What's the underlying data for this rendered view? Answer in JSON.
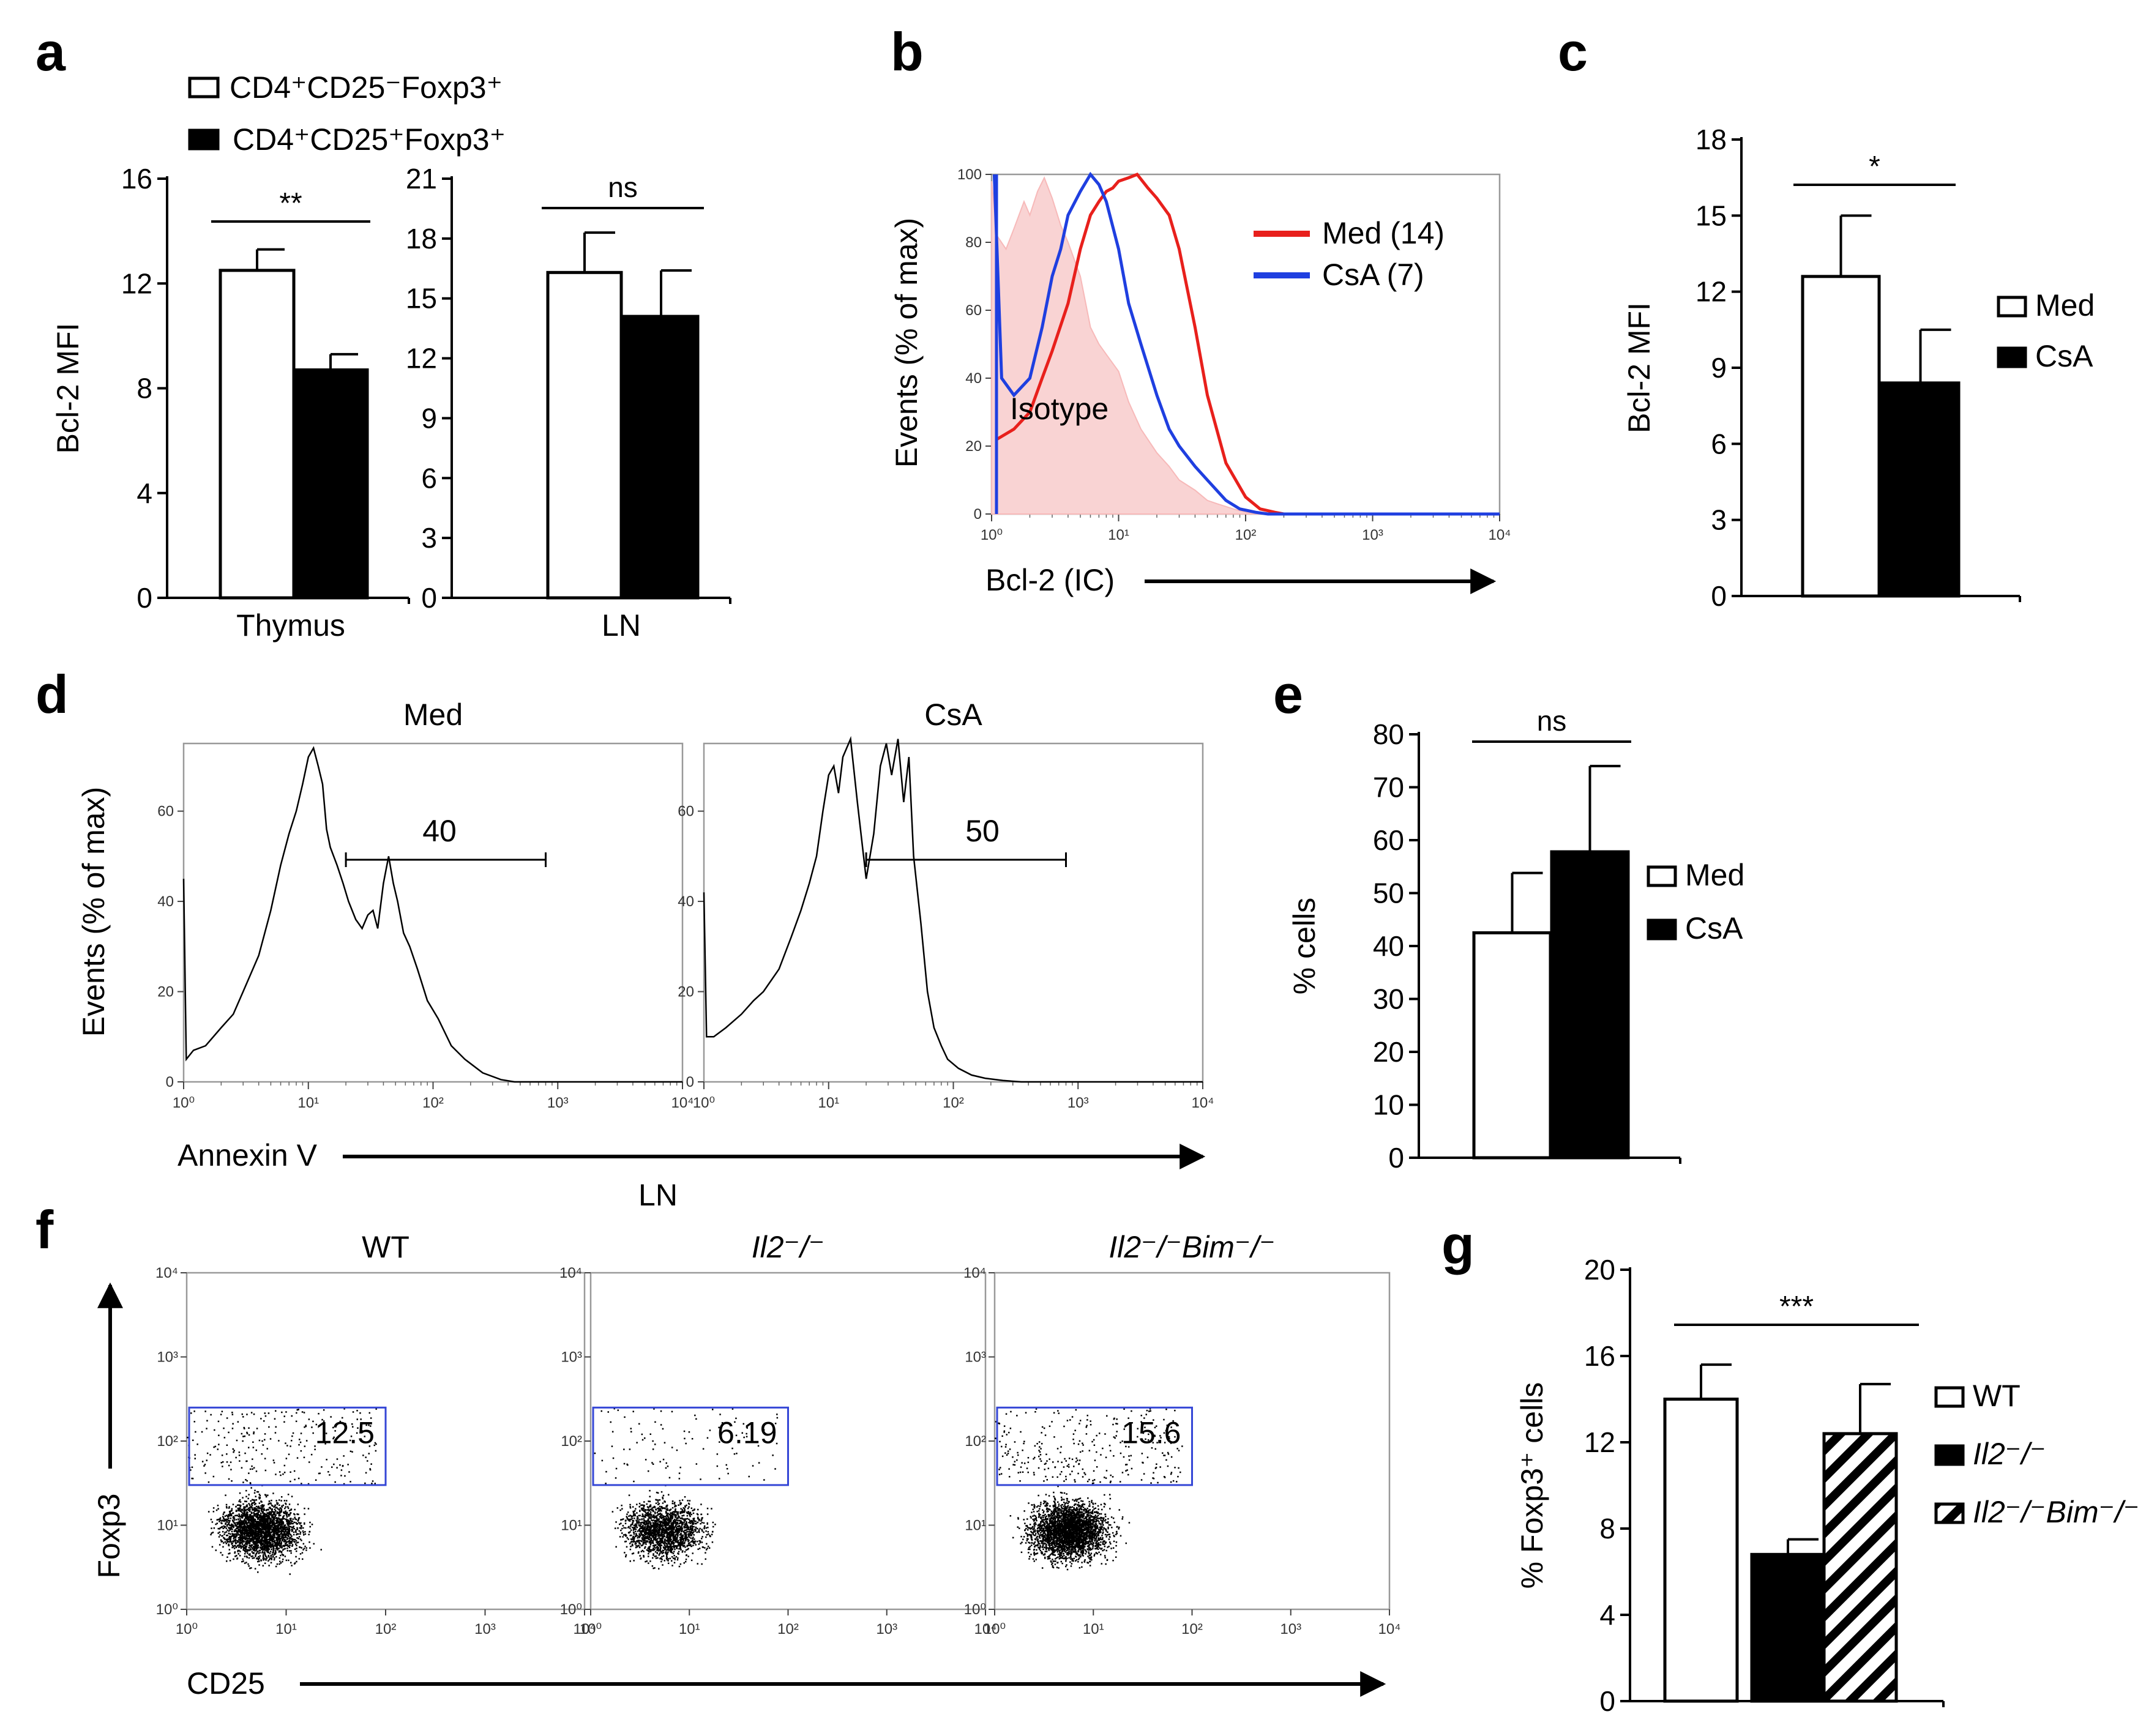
{
  "panels": {
    "a": {
      "label": "a",
      "legend": [
        {
          "text": "CD4⁺CD25⁻Foxp3⁺",
          "fill": "#ffffff"
        },
        {
          "text": "CD4⁺CD25⁺Foxp3⁺",
          "fill": "#000000"
        }
      ]
    },
    "b": {
      "label": "b"
    },
    "c": {
      "label": "c"
    },
    "d": {
      "label": "d"
    },
    "e": {
      "label": "e"
    },
    "f": {
      "label": "f"
    },
    "g": {
      "label": "g"
    }
  },
  "colors": {
    "med_line": "#e8201c",
    "csa_line": "#1f3fe0",
    "isotype_fill": "#f9d3d3",
    "gate": "#3446d6"
  },
  "chart_data": [
    {
      "id": "a-thymus",
      "type": "bar",
      "ylabel": "Bcl-2 MFI",
      "xlabel": "Thymus",
      "ylim": [
        0,
        16
      ],
      "yticks": [
        0,
        4,
        8,
        12,
        16
      ],
      "series": [
        {
          "name": "CD4⁺CD25⁻Foxp3⁺",
          "fill": "#ffffff",
          "value": 12.5,
          "err": 0.8
        },
        {
          "name": "CD4⁺CD25⁺Foxp3⁺",
          "fill": "#000000",
          "value": 8.7,
          "err": 0.6
        }
      ],
      "significance": "**"
    },
    {
      "id": "a-ln",
      "type": "bar",
      "ylabel": "",
      "xlabel": "LN",
      "ylim": [
        0,
        21
      ],
      "yticks": [
        0,
        3,
        6,
        9,
        12,
        15,
        18,
        21
      ],
      "series": [
        {
          "name": "CD4⁺CD25⁻Foxp3⁺",
          "fill": "#ffffff",
          "value": 16.3,
          "err": 2.0
        },
        {
          "name": "CD4⁺CD25⁺Foxp3⁺",
          "fill": "#000000",
          "value": 14.1,
          "err": 2.3
        }
      ],
      "significance": "ns"
    },
    {
      "id": "b",
      "type": "line",
      "ylabel": "Events (% of max)",
      "xlabel": "Bcl-2 (IC)",
      "xscale": "log",
      "xlim": [
        1,
        10000
      ],
      "ylim": [
        0,
        100
      ],
      "yticks": [
        0,
        20,
        40,
        60,
        80,
        100
      ],
      "xtick_labels": [
        "10⁰",
        "10¹",
        "10²",
        "10³",
        "10⁴"
      ],
      "legend": [
        "Med (14)",
        "CsA (7)"
      ],
      "annotation": "Isotype",
      "series": [
        {
          "name": "Med (14)",
          "color": "#e8201c",
          "x": [
            1.1,
            1.5,
            2,
            2.5,
            3,
            4,
            5,
            6,
            7,
            8,
            9,
            10,
            12,
            14,
            17,
            20,
            25,
            30,
            40,
            50,
            70,
            100,
            130,
            170,
            200,
            500,
            10000
          ],
          "y": [
            22,
            25,
            30,
            40,
            48,
            62,
            78,
            88,
            92,
            95,
            96,
            98,
            99,
            100,
            96,
            93,
            88,
            78,
            55,
            35,
            15,
            5,
            1.5,
            0.5,
            0,
            0,
            0
          ]
        },
        {
          "name": "CsA (7)",
          "color": "#1f3fe0",
          "x": [
            1.05,
            1.2,
            1.5,
            2,
            2.5,
            3,
            3.5,
            4,
            5,
            6,
            7,
            8,
            10,
            12,
            15,
            20,
            25,
            30,
            40,
            50,
            70,
            90,
            120,
            150,
            500,
            10000
          ],
          "y": [
            100,
            40,
            35,
            40,
            55,
            70,
            78,
            88,
            95,
            100,
            97,
            92,
            78,
            62,
            50,
            35,
            25,
            20,
            14,
            10,
            4,
            1.5,
            0.5,
            0,
            0,
            0
          ]
        },
        {
          "name": "Isotype",
          "color": "#f7b9b9",
          "fill": "#f9d3d3",
          "x": [
            1,
            1.1,
            1.3,
            1.5,
            1.8,
            2,
            2.3,
            2.6,
            3,
            3.5,
            4,
            5,
            6,
            7,
            8,
            10,
            12,
            15,
            20,
            25,
            30,
            40,
            50,
            60,
            80,
            100,
            120,
            1000
          ],
          "y": [
            98,
            82,
            78,
            84,
            92,
            88,
            95,
            99,
            93,
            85,
            80,
            70,
            55,
            50,
            47,
            42,
            33,
            25,
            18,
            14,
            10,
            7,
            4,
            3,
            1.5,
            0.5,
            0,
            0
          ]
        }
      ]
    },
    {
      "id": "c",
      "type": "bar",
      "ylabel": "Bcl-2 MFI",
      "ylim": [
        0,
        18
      ],
      "yticks": [
        0,
        3,
        6,
        9,
        12,
        15,
        18
      ],
      "series": [
        {
          "name": "Med",
          "fill": "#ffffff",
          "value": 12.6,
          "err": 2.4
        },
        {
          "name": "CsA",
          "fill": "#000000",
          "value": 8.4,
          "err": 2.1
        }
      ],
      "significance": "*",
      "legend": [
        "Med",
        "CsA"
      ]
    },
    {
      "id": "d",
      "type": "line",
      "ylabel": "Events (% of max)",
      "xlabel": "Annexin V",
      "footer": "LN",
      "xscale": "log",
      "xlim": [
        1,
        10000
      ],
      "ylim": [
        0,
        75
      ],
      "yticks": [
        0,
        20,
        40,
        60
      ],
      "xtick_labels": [
        "10⁰",
        "10¹",
        "10²",
        "10³",
        "10⁴"
      ],
      "panels": [
        {
          "title": "Med",
          "gate_label": "40",
          "gate": [
            20,
            800
          ],
          "x": [
            1,
            1.05,
            1.2,
            1.5,
            2,
            2.5,
            3,
            4,
            5,
            6,
            7,
            8,
            9,
            10,
            11,
            12,
            13,
            14,
            15,
            17,
            19,
            21,
            24,
            27,
            30,
            33,
            36,
            40,
            44,
            48,
            52,
            58,
            65,
            75,
            90,
            110,
            140,
            180,
            250,
            350,
            450,
            10000
          ],
          "y": [
            45,
            5,
            7,
            8,
            12,
            15,
            20,
            28,
            38,
            48,
            55,
            60,
            66,
            72,
            74,
            70,
            66,
            56,
            52,
            48,
            44,
            40,
            36,
            34,
            37,
            38,
            34,
            44,
            50,
            44,
            40,
            33,
            30,
            25,
            18,
            14,
            8,
            5,
            2,
            0.5,
            0,
            0
          ]
        },
        {
          "title": "CsA",
          "gate_label": "50",
          "gate": [
            20,
            800
          ],
          "x": [
            1,
            1.05,
            1.2,
            1.5,
            2,
            2.5,
            3,
            4,
            5,
            6,
            7,
            8,
            9,
            10,
            11,
            12,
            13,
            15,
            17,
            20,
            23,
            26,
            29,
            32,
            36,
            40,
            44,
            48,
            55,
            62,
            70,
            80,
            90,
            110,
            140,
            180,
            250,
            350,
            10000
          ],
          "y": [
            42,
            10,
            10,
            12,
            15,
            18,
            20,
            25,
            32,
            38,
            44,
            50,
            60,
            68,
            70,
            64,
            72,
            76,
            62,
            45,
            55,
            70,
            75,
            68,
            76,
            62,
            72,
            50,
            35,
            20,
            12,
            8,
            5,
            3,
            1.5,
            0.8,
            0.3,
            0,
            0
          ]
        }
      ]
    },
    {
      "id": "e",
      "type": "bar",
      "ylabel": "% cells",
      "ylim": [
        0,
        80
      ],
      "yticks": [
        0,
        10,
        20,
        30,
        40,
        50,
        60,
        70,
        80
      ],
      "series": [
        {
          "name": "Med",
          "fill": "#ffffff",
          "value": 42.5,
          "err": 11.3
        },
        {
          "name": "CsA",
          "fill": "#000000",
          "value": 57.8,
          "err": 16.2
        }
      ],
      "significance": "ns",
      "legend": [
        "Med",
        "CsA"
      ]
    },
    {
      "id": "f",
      "type": "scatter",
      "ylabel": "Foxp3",
      "xlabel": "CD25",
      "xscale": "log",
      "yscale": "log",
      "xlim": [
        1,
        10000
      ],
      "ylim": [
        1,
        10000
      ],
      "xtick_labels": [
        "10⁰",
        "10¹",
        "10²",
        "10³",
        "10⁴"
      ],
      "panels": [
        {
          "title": "WT",
          "gate_label": "12.5",
          "gate_x": [
            1,
            100
          ],
          "gate_y": [
            30,
            250
          ]
        },
        {
          "title": "Il2⁻/⁻",
          "gate_label": "6.19",
          "gate_x": [
            1,
            100
          ],
          "gate_y": [
            30,
            250
          ]
        },
        {
          "title": "Il2⁻/⁻Bim⁻/⁻",
          "gate_label": "15.6",
          "gate_x": [
            1,
            100
          ],
          "gate_y": [
            30,
            250
          ]
        }
      ]
    },
    {
      "id": "g",
      "type": "bar",
      "ylabel": "% Foxp3⁺ cells",
      "ylim": [
        0,
        20
      ],
      "yticks": [
        0,
        4,
        8,
        12,
        16,
        20
      ],
      "series": [
        {
          "name": "WT",
          "fill": "#ffffff",
          "value": 14.0,
          "err": 1.6
        },
        {
          "name": "Il2⁻/⁻",
          "fill": "#000000",
          "value": 6.8,
          "err": 0.7
        },
        {
          "name": "Il2⁻/⁻Bim⁻/⁻",
          "fill": "hatch",
          "value": 12.4,
          "err": 2.3
        }
      ],
      "significance": "***",
      "legend": [
        "WT",
        "Il2⁻/⁻",
        "Il2⁻/⁻Bim⁻/⁻"
      ]
    }
  ]
}
